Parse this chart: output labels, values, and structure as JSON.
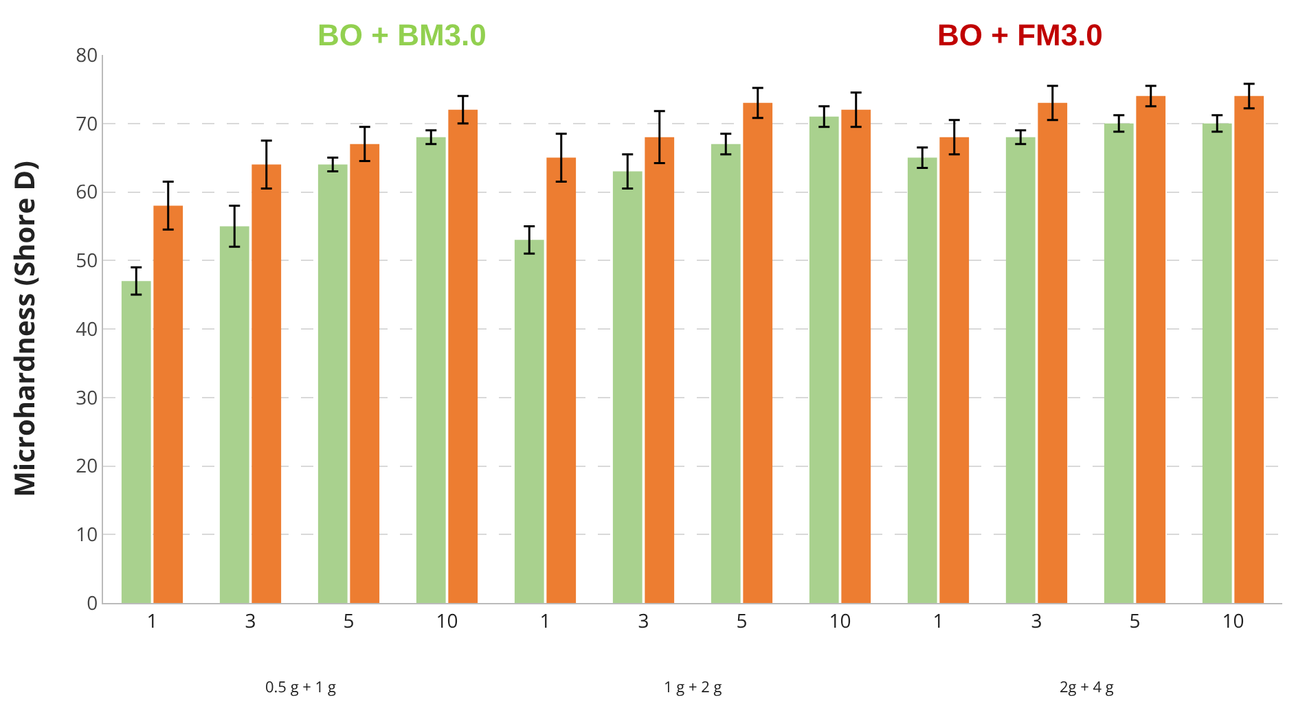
{
  "chart_data": {
    "type": "bar",
    "ylabel": "Microhardness (Shore D)",
    "categories": [
      "1",
      "3",
      "5",
      "10",
      "1",
      "3",
      "5",
      "10",
      "1",
      "3",
      "5",
      "10"
    ],
    "series": [
      {
        "color": "#a9d18e",
        "values": [
          47,
          55,
          64,
          68,
          53,
          63,
          67,
          71,
          65,
          68,
          70,
          70
        ],
        "errors": [
          2,
          3,
          1,
          1,
          2,
          2.5,
          1.5,
          1.5,
          1.5,
          1,
          1.2,
          1.2
        ]
      },
      {
        "color": "#ed7d31",
        "values": [
          58,
          64,
          67,
          72,
          65,
          68,
          73,
          72,
          68,
          73,
          74,
          74
        ],
        "errors": [
          3.5,
          3.5,
          2.5,
          2,
          3.5,
          3.8,
          2.2,
          2.5,
          2.5,
          2.5,
          1.5,
          1.8
        ]
      }
    ],
    "annotations": [
      "BO + BM3.0",
      "BO + FM3.0",
      "0.5 g + 1 g",
      "1 g + 2 g",
      "2g + 4 g"
    ],
    "ylim": [
      0,
      80
    ],
    "yticks": [
      0,
      10,
      20,
      30,
      40,
      50,
      60,
      70,
      80
    ],
    "grid": "y"
  }
}
